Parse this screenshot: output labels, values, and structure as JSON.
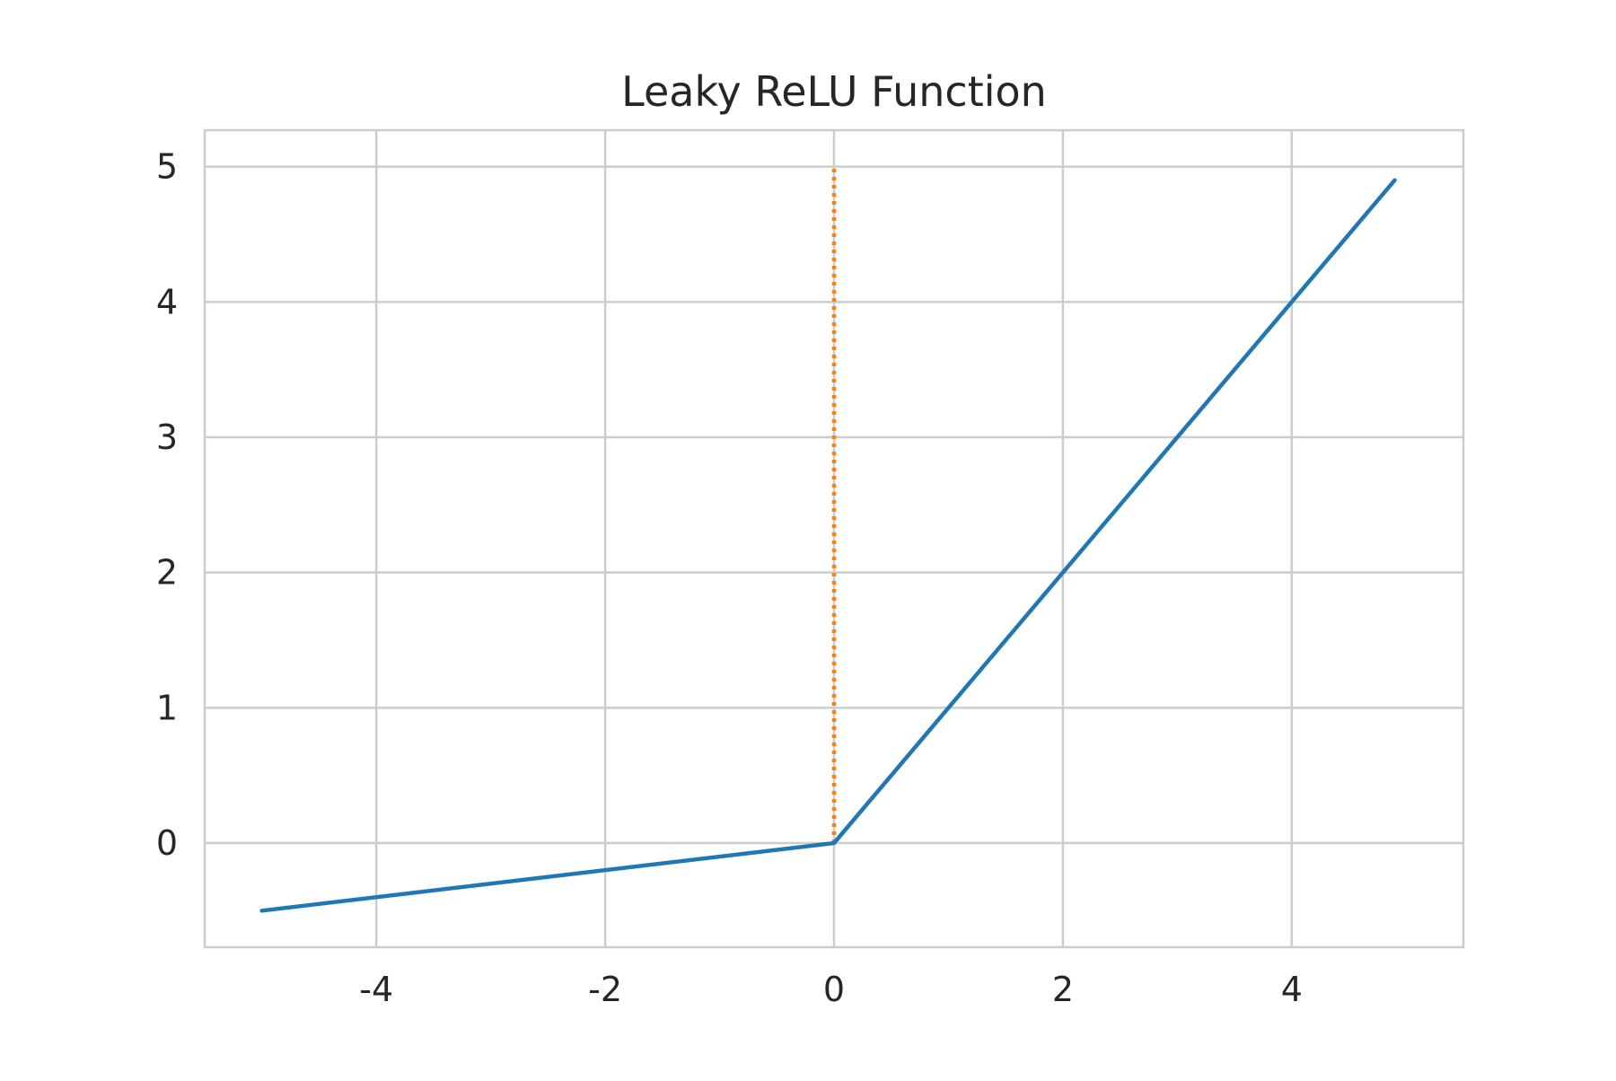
{
  "chart_data": {
    "type": "line",
    "title": "Leaky ReLU Function",
    "xlabel": "",
    "ylabel": "",
    "xlim": [
      -5.5,
      5.5
    ],
    "ylim": [
      -0.77,
      5.27
    ],
    "x_ticks": [
      -4,
      -2,
      0,
      2,
      4
    ],
    "x_tick_labels": [
      "-4",
      "-2",
      "0",
      "2",
      "4"
    ],
    "y_ticks": [
      0,
      1,
      2,
      3,
      4,
      5
    ],
    "y_tick_labels": [
      "0",
      "1",
      "2",
      "3",
      "4",
      "5"
    ],
    "grid": true,
    "legend": "none",
    "series": [
      {
        "style": "solid",
        "color": "#1f77b4",
        "x": [
          -5,
          0,
          4.9
        ],
        "y": [
          -0.5,
          0,
          4.9
        ]
      },
      {
        "style": "dotted",
        "color": "#ff7f0e",
        "x": [
          0,
          0
        ],
        "y": [
          0,
          5
        ]
      }
    ]
  }
}
